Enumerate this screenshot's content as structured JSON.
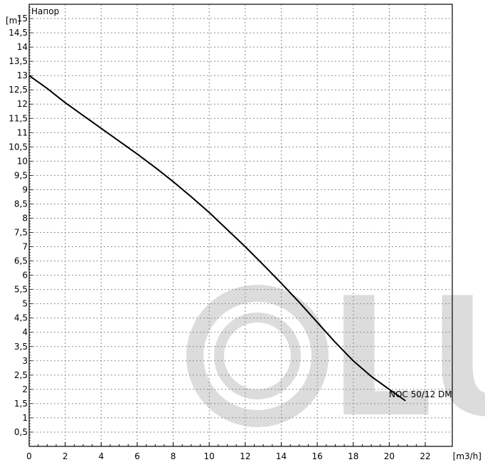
{
  "chart_data": {
    "type": "line",
    "title": "Напор",
    "ylabel": "[m]",
    "xlabel": "[m3/h]",
    "xlim": [
      0,
      23.5
    ],
    "ylim": [
      0,
      15.5
    ],
    "x_ticks": [
      0,
      2,
      4,
      6,
      8,
      10,
      12,
      14,
      16,
      18,
      20,
      22
    ],
    "x_tick_labels": [
      "0",
      "2",
      "4",
      "6",
      "8",
      "10",
      "12",
      "14",
      "16",
      "18",
      "20",
      "22"
    ],
    "y_ticks": [
      0.5,
      1,
      1.5,
      2,
      2.5,
      3,
      3.5,
      4,
      4.5,
      5,
      5.5,
      6,
      6.5,
      7,
      7.5,
      8,
      8.5,
      9,
      9.5,
      10,
      10.5,
      11,
      11.5,
      12,
      12.5,
      13,
      13.5,
      14,
      14.5,
      15
    ],
    "y_tick_labels": [
      "0,5",
      "1",
      "1,5",
      "2",
      "2,5",
      "3",
      "3,5",
      "4",
      "4,5",
      "5",
      "5,5",
      "6",
      "6,5",
      "7",
      "7,5",
      "8",
      "8,5",
      "9",
      "9,5",
      "10",
      "10,5",
      "11",
      "11,5",
      "12",
      "12,5",
      "13",
      "13,5",
      "14",
      "14,5",
      "15"
    ],
    "grid": true,
    "series": [
      {
        "name": "NOC 50/12 DM",
        "color": "#000000",
        "x": [
          0,
          1,
          2,
          3,
          4,
          5,
          6,
          7,
          8,
          9,
          10,
          11,
          12,
          13,
          14,
          15,
          16,
          17,
          18,
          19,
          20,
          20.9
        ],
        "y": [
          13.0,
          12.55,
          12.05,
          11.6,
          11.15,
          10.7,
          10.25,
          9.78,
          9.28,
          8.75,
          8.2,
          7.6,
          7.0,
          6.37,
          5.72,
          5.05,
          4.35,
          3.65,
          3.0,
          2.45,
          2.0,
          1.6
        ]
      }
    ]
  },
  "watermark": {
    "text": "LU",
    "color": "#dcdcdc"
  }
}
